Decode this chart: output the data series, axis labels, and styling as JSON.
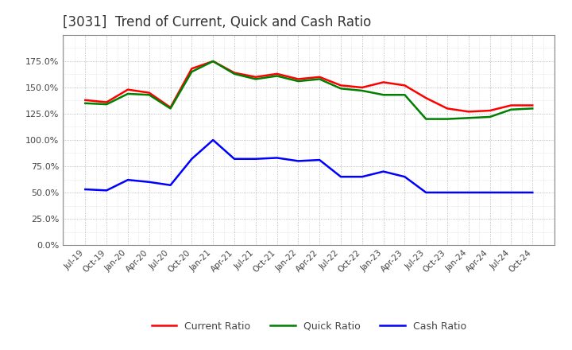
{
  "title": "[3031]  Trend of Current, Quick and Cash Ratio",
  "title_fontsize": 12,
  "background_color": "#ffffff",
  "grid_color": "#aaaaaa",
  "x_labels": [
    "Jul-19",
    "Oct-19",
    "Jan-20",
    "Apr-20",
    "Jul-20",
    "Oct-20",
    "Jan-21",
    "Apr-21",
    "Jul-21",
    "Oct-21",
    "Jan-22",
    "Apr-22",
    "Jul-22",
    "Oct-22",
    "Jan-23",
    "Apr-23",
    "Jul-23",
    "Oct-23",
    "Jan-24",
    "Apr-24",
    "Jul-24",
    "Oct-24"
  ],
  "current_ratio": [
    138.0,
    136.0,
    148.0,
    145.0,
    131.0,
    168.0,
    175.0,
    164.0,
    160.0,
    163.0,
    158.0,
    160.0,
    152.0,
    150.0,
    155.0,
    152.0,
    140.0,
    130.0,
    127.0,
    128.0,
    133.0,
    133.0
  ],
  "quick_ratio": [
    135.0,
    134.0,
    144.0,
    143.0,
    130.0,
    165.0,
    175.0,
    163.0,
    158.0,
    161.0,
    156.0,
    158.0,
    149.0,
    147.0,
    143.0,
    143.0,
    120.0,
    120.0,
    121.0,
    122.0,
    129.0,
    130.0
  ],
  "cash_ratio": [
    53.0,
    52.0,
    62.0,
    60.0,
    57.0,
    82.0,
    100.0,
    82.0,
    82.0,
    83.0,
    80.0,
    81.0,
    65.0,
    65.0,
    70.0,
    65.0,
    50.0,
    50.0,
    50.0,
    50.0,
    50.0,
    50.0
  ],
  "current_color": "#ff0000",
  "quick_color": "#008000",
  "cash_color": "#0000ff",
  "ylim": [
    0.0,
    200.0
  ],
  "yticks": [
    0,
    25,
    50,
    75,
    100,
    125,
    150,
    175
  ],
  "legend_labels": [
    "Current Ratio",
    "Quick Ratio",
    "Cash Ratio"
  ],
  "line_width": 1.8
}
